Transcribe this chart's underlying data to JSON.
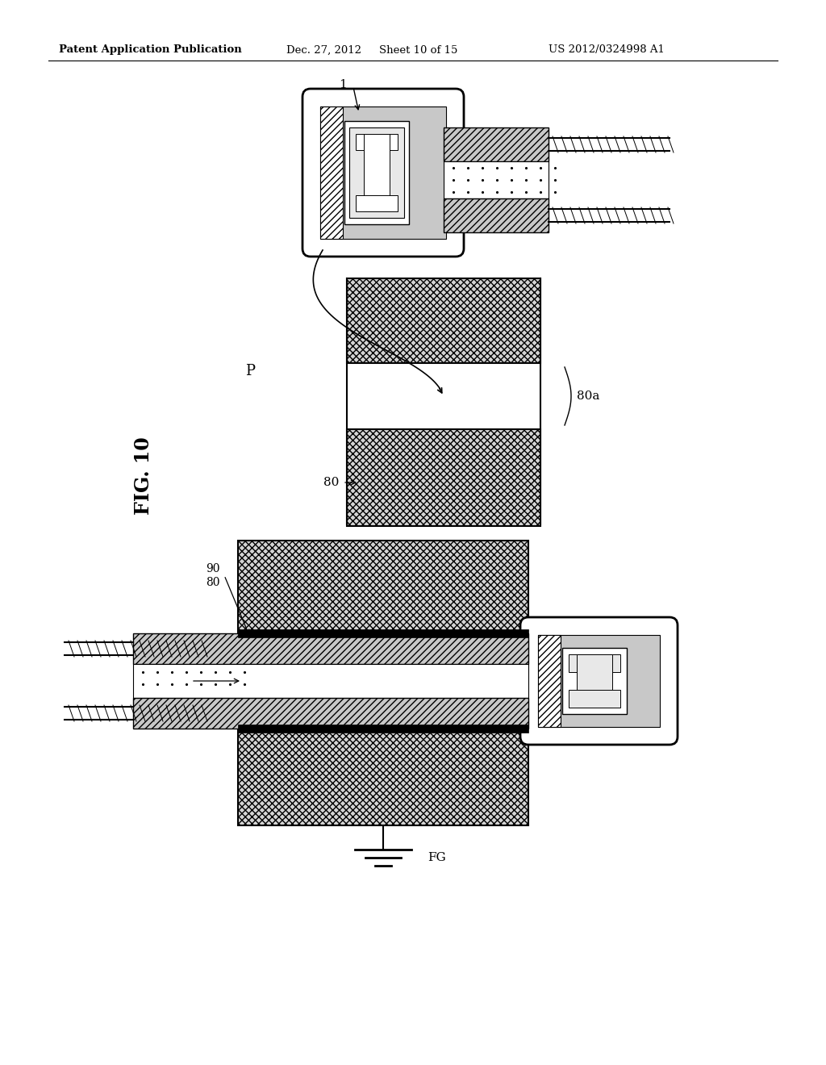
{
  "background_color": "#ffffff",
  "header_text": "Patent Application Publication",
  "header_date": "Dec. 27, 2012",
  "header_sheet": "Sheet 10 of 15",
  "header_patent": "US 2012/0324998 A1",
  "fig_label": "FIG. 10",
  "label_1": "1",
  "label_P": "P",
  "label_80": "80",
  "label_80a": "80a",
  "label_90": "90",
  "label_FG": "FG",
  "hatch_mesh": "xxxx",
  "hatch_diag": "////",
  "color_mesh_face": "#d4d4d4",
  "color_gray": "#c8c8c8",
  "color_darkgray": "#999999",
  "color_lightgray": "#e8e8e8"
}
